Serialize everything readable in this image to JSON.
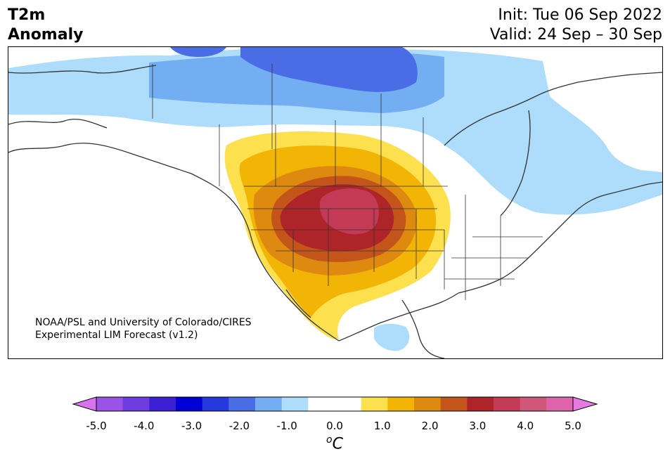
{
  "title": {
    "left_line1": "T2m",
    "left_line2": "Anomaly",
    "init": "Init: Tue 06 Sep 2022",
    "valid": "Valid: 24 Sep – 30 Sep"
  },
  "credit": {
    "line1": "NOAA/PSL and University of Colorado/CIRES",
    "line2": "Experimental LIM Forecast (v1.2)"
  },
  "colorbar": {
    "unit_sup": "o",
    "unit_main": "C",
    "ticks": [
      "-5.0",
      "-4.0",
      "-3.0",
      "-2.0",
      "-1.0",
      "0.0",
      "1.0",
      "2.0",
      "3.0",
      "4.0",
      "5.0"
    ],
    "colors": [
      "#d873ef",
      "#9a52e6",
      "#6c3ce0",
      "#3b20d4",
      "#0000d6",
      "#2639dd",
      "#4a6de6",
      "#74aef2",
      "#aedcfb",
      "#ffffff",
      "#ffffff",
      "#fde04e",
      "#f2b405",
      "#de8a10",
      "#c4551a",
      "#ae2428",
      "#c23a55",
      "#d0567a",
      "#e064ab",
      "#e67ae0"
    ]
  },
  "legend_level_colors": {
    "neg_05_1": "#aedcfb",
    "neg_1_15": "#74aef2",
    "neg_15_2": "#4a6de6",
    "pos_05_1": "#fde04e",
    "pos_1_15": "#f2b405",
    "pos_15_2": "#de8a10",
    "pos_2_25": "#c4551a",
    "pos_25_3": "#ae2428",
    "pos_3_35": "#c23a55"
  }
}
